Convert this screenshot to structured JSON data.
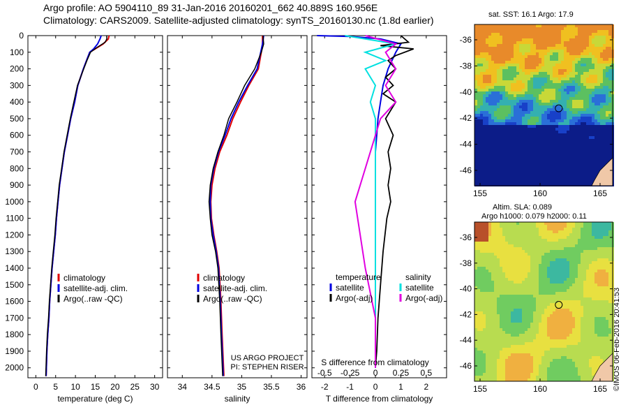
{
  "header": {
    "line1": "Argo profile: AO 5904110_89 31-Jan-2016 20160201_662 40.889S 160.956E",
    "line2": "Climatology: CARS2009. Satellite-adjusted climatology: synTS_20160130.nc (1.8d earlier)"
  },
  "map_sst": {
    "title": "sat. SST: 16.1 Argo: 17.9",
    "lat_ticks": [
      "-36",
      "-38",
      "-40",
      "-42",
      "-44",
      "-46"
    ],
    "lon_ticks": [
      "155",
      "160",
      "165"
    ]
  },
  "map_sla": {
    "title_line1": "Altim. SLA: 0.089",
    "title_line2": "Argo h1000: 0.079 h2000: 0.11",
    "lat_ticks": [
      "-36",
      "-38",
      "-40",
      "-42",
      "-44",
      "-46"
    ],
    "lon_ticks": [
      "155",
      "160",
      "165"
    ]
  },
  "credit": "©IMOS 06-Feb-2016 20:41:53",
  "project": {
    "line1": "US ARGO PROJECT",
    "line2": "PI: STEPHEN RISER"
  },
  "colors": {
    "climatology": "#e00000",
    "satellite": "#0000e0",
    "argo": "#000000",
    "sat_salinity": "#00e0e0",
    "argo_salinity": "#e000e0"
  },
  "chart_data": [
    {
      "type": "line",
      "xlabel": "temperature (deg C)",
      "xlim": [
        -2,
        32
      ],
      "ylim": [
        2060,
        0
      ],
      "xticks": [
        "0",
        "5",
        "10",
        "15",
        "20",
        "25",
        "30"
      ],
      "yticks": [
        "0",
        "100",
        "200",
        "300",
        "400",
        "500",
        "600",
        "700",
        "800",
        "900",
        "1000",
        "1100",
        "1200",
        "1300",
        "1400",
        "1500",
        "1600",
        "1700",
        "1800",
        "1900",
        "2000"
      ],
      "legend": [
        "climatology",
        "satellite-adj. clim.",
        "Argo(..raw -QC)"
      ],
      "series": [
        {
          "name": "climatology",
          "x": [
            18.5,
            18.3,
            17.0,
            15.0,
            13.6,
            12.8,
            12.0,
            11.3,
            10.6,
            9.8,
            8.8,
            8.0,
            7.2,
            6.6,
            6.0,
            5.6,
            5.2,
            4.9,
            4.5,
            4.1,
            3.8,
            3.5,
            3.3,
            3.0,
            2.8,
            2.6
          ],
          "y": [
            0,
            20,
            50,
            80,
            100,
            150,
            200,
            250,
            300,
            400,
            500,
            600,
            700,
            800,
            900,
            1000,
            1100,
            1200,
            1300,
            1400,
            1500,
            1600,
            1700,
            1800,
            1900,
            2050
          ]
        },
        {
          "name": "satellite-adj. clim.",
          "x": [
            16.5,
            16.2,
            15.6,
            14.6,
            13.6,
            12.8,
            12.0,
            11.3,
            10.6,
            9.8,
            8.8,
            8.0,
            7.2,
            6.6,
            6.0,
            5.6,
            5.2,
            4.9,
            4.5,
            4.1,
            3.8,
            3.5,
            3.3,
            3.0,
            2.8,
            2.6
          ],
          "y": [
            0,
            20,
            50,
            80,
            100,
            150,
            200,
            250,
            300,
            400,
            500,
            600,
            700,
            800,
            900,
            1000,
            1100,
            1200,
            1300,
            1400,
            1500,
            1600,
            1700,
            1800,
            1900,
            2050
          ]
        },
        {
          "name": "Argo(..raw -QC)",
          "x": [
            17.9,
            17.9,
            17.5,
            15.5,
            13.8,
            12.9,
            12.1,
            11.3,
            10.5,
            9.6,
            8.7,
            7.9,
            7.1,
            6.5,
            5.9,
            5.5,
            5.1,
            4.8,
            4.4,
            4.0,
            3.7,
            3.4,
            3.2,
            2.9,
            2.7,
            2.5
          ],
          "y": [
            0,
            20,
            40,
            70,
            100,
            150,
            200,
            250,
            300,
            400,
            500,
            600,
            700,
            800,
            900,
            1000,
            1100,
            1200,
            1300,
            1400,
            1500,
            1600,
            1700,
            1800,
            1900,
            2050
          ]
        }
      ]
    },
    {
      "type": "line",
      "xlabel": "salinity",
      "xlim": [
        33.75,
        36.1
      ],
      "ylim": [
        2060,
        0
      ],
      "xticks": [
        "34",
        "34.5",
        "35",
        "35.5",
        "36"
      ],
      "legend": [
        "climatology",
        "satellite-adj. clim.",
        "Argo(..raw -QC)"
      ],
      "series": [
        {
          "name": "climatology",
          "x": [
            35.35,
            35.35,
            35.33,
            35.28,
            35.12,
            34.98,
            34.85,
            34.75,
            34.63,
            34.55,
            34.5,
            34.48,
            34.49,
            34.53,
            34.58,
            34.62,
            34.65,
            34.67,
            34.7
          ],
          "y": [
            0,
            50,
            100,
            200,
            300,
            400,
            500,
            600,
            700,
            800,
            900,
            1000,
            1100,
            1200,
            1300,
            1400,
            1600,
            1800,
            2050
          ]
        },
        {
          "name": "satellite-adj. clim.",
          "x": [
            35.37,
            35.35,
            35.32,
            35.26,
            35.1,
            34.95,
            34.82,
            34.72,
            34.61,
            34.53,
            34.48,
            34.47,
            34.48,
            34.52,
            34.57,
            34.61,
            34.64,
            34.66,
            34.69
          ],
          "y": [
            0,
            50,
            100,
            200,
            300,
            400,
            500,
            600,
            700,
            800,
            900,
            1000,
            1100,
            1200,
            1300,
            1400,
            1600,
            1800,
            2050
          ]
        },
        {
          "name": "Argo(..raw -QC)",
          "x": [
            35.36,
            35.37,
            35.33,
            35.22,
            35.05,
            34.92,
            34.78,
            34.7,
            34.6,
            34.52,
            34.47,
            34.45,
            34.47,
            34.5,
            34.56,
            34.6,
            34.63,
            34.65,
            34.68
          ],
          "y": [
            0,
            50,
            100,
            200,
            300,
            400,
            500,
            600,
            700,
            800,
            900,
            1000,
            1100,
            1200,
            1300,
            1400,
            1600,
            1800,
            2050
          ]
        }
      ]
    },
    {
      "type": "line",
      "xlabel": "T difference from climatology",
      "xlabel_top": "S difference from climatology",
      "xlim": [
        -2.5,
        2.8
      ],
      "ylim": [
        2060,
        0
      ],
      "xticks": [
        "-2",
        "-1",
        "0",
        "1",
        "2"
      ],
      "s_ticks": [
        "-0.5",
        "-0.25",
        "0",
        "0.25",
        "0.5"
      ],
      "legend_left_title": "temperature",
      "legend_right_title": "salinity",
      "legend_left": [
        "satellite",
        "Argo(-adj)"
      ],
      "legend_right": [
        "satellite",
        "Argo(-adj)"
      ],
      "series": [
        {
          "name": "satellite",
          "x": [
            -2.3,
            -1.0,
            0.2,
            1.0,
            0.8,
            0.5,
            0.3,
            0.2,
            0.1,
            0.05,
            0.0,
            0.0,
            0.0,
            0.0,
            0.0,
            0.0,
            0.0,
            0.0
          ],
          "y": [
            0,
            5,
            20,
            50,
            100,
            200,
            300,
            400,
            500,
            600,
            700,
            800,
            900,
            1000,
            1200,
            1500,
            1800,
            2000
          ]
        },
        {
          "name": "Argo(-adj)",
          "x": [
            1.0,
            1.3,
            0.2,
            1.5,
            0.8,
            0.5,
            0.8,
            0.4,
            0.7,
            0.3,
            0.8,
            0.4,
            0.7,
            0.5,
            0.6,
            0.5,
            0.6,
            0.45,
            0.3,
            0.2,
            0.1,
            0.05,
            0.0
          ],
          "y": [
            0,
            40,
            60,
            80,
            120,
            150,
            200,
            250,
            300,
            350,
            400,
            500,
            600,
            700,
            800,
            900,
            1000,
            1100,
            1300,
            1500,
            1700,
            1900,
            2000
          ]
        },
        {
          "name": "satellite",
          "x": [
            -0.3,
            0.2,
            -0.1,
            0.1,
            -0.1,
            0.0,
            -0.05,
            0.0,
            0.0,
            0.0,
            0.0,
            0.0,
            0.0
          ],
          "y": [
            0,
            50,
            100,
            150,
            200,
            300,
            400,
            500,
            700,
            900,
            1200,
            1600,
            2000
          ]
        },
        {
          "name": "Argo(-adj)",
          "x": [
            -0.1,
            0.2,
            0.1,
            0.15,
            0.2,
            0.1,
            0.2,
            0.05,
            -0.1,
            -0.2,
            -0.1,
            0.0,
            0.0
          ],
          "y": [
            0,
            50,
            100,
            150,
            200,
            300,
            400,
            500,
            800,
            1000,
            1400,
            1700,
            2000
          ]
        }
      ]
    }
  ]
}
